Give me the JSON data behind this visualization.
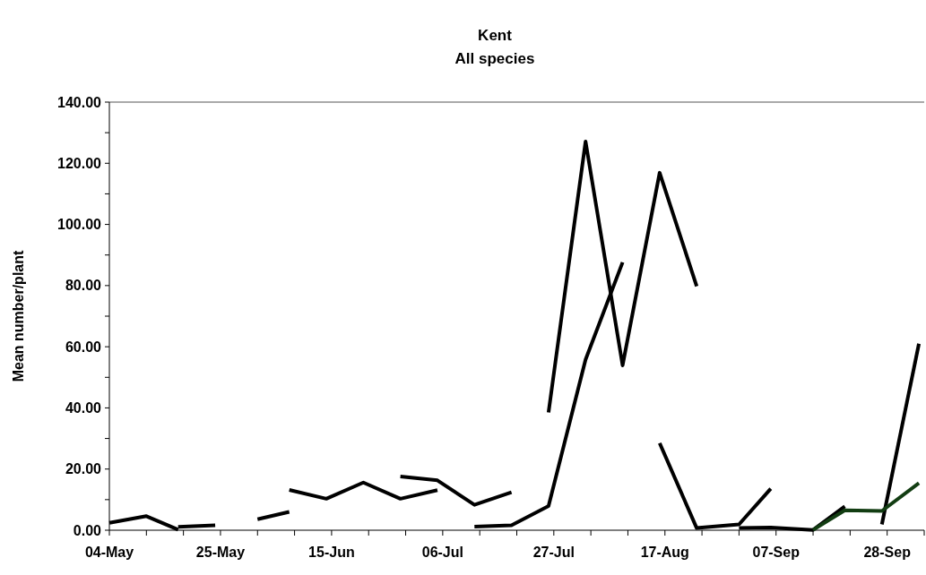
{
  "chart_data": {
    "type": "line",
    "title": "Kent",
    "subtitle": "All species",
    "ylabel": "Mean number/plant",
    "xlim": [
      "--05-04",
      "--10-05"
    ],
    "xticks": [
      {
        "value": "--05-04",
        "label": "04-May"
      },
      {
        "value": "--05-11",
        "label": null
      },
      {
        "value": "--05-18",
        "label": null
      },
      {
        "value": "--05-25",
        "label": "25-May"
      },
      {
        "value": "--06-01",
        "label": null
      },
      {
        "value": "--06-08",
        "label": null
      },
      {
        "value": "--06-15",
        "label": "15-Jun"
      },
      {
        "value": "--06-22",
        "label": null
      },
      {
        "value": "--06-29",
        "label": null
      },
      {
        "value": "--07-06",
        "label": "06-Jul"
      },
      {
        "value": "--07-13",
        "label": null
      },
      {
        "value": "--07-20",
        "label": null
      },
      {
        "value": "--07-27",
        "label": "27-Jul"
      },
      {
        "value": "--08-03",
        "label": null
      },
      {
        "value": "--08-10",
        "label": null
      },
      {
        "value": "--08-17",
        "label": "17-Aug"
      },
      {
        "value": "--08-24",
        "label": null
      },
      {
        "value": "--08-31",
        "label": null
      },
      {
        "value": "--09-07",
        "label": "07-Sep"
      },
      {
        "value": "--09-14",
        "label": null
      },
      {
        "value": "--09-21",
        "label": null
      },
      {
        "value": "--09-28",
        "label": "28-Sep"
      },
      {
        "value": "--10-05",
        "label": null
      }
    ],
    "ylim": [
      0,
      140
    ],
    "yticks": [
      {
        "value": 0,
        "label": "0.00"
      },
      {
        "value": 10,
        "label": null
      },
      {
        "value": 20,
        "label": "20.00"
      },
      {
        "value": 30,
        "label": null
      },
      {
        "value": 40,
        "label": "40.00"
      },
      {
        "value": 50,
        "label": null
      },
      {
        "value": 60,
        "label": "60.00"
      },
      {
        "value": 70,
        "label": null
      },
      {
        "value": 80,
        "label": "80.00"
      },
      {
        "value": 90,
        "label": null
      },
      {
        "value": 100,
        "label": "100.00"
      },
      {
        "value": 110,
        "label": null
      },
      {
        "value": 120,
        "label": "120.00"
      },
      {
        "value": 130,
        "label": null
      },
      {
        "value": 140,
        "label": "140.00"
      }
    ],
    "grid": false,
    "marker": "none",
    "line_style": "solid",
    "series": [
      {
        "color": "#000000",
        "x": [
          "--05-04",
          "--05-11",
          "--05-17"
        ],
        "values": [
          2.4,
          4.6,
          0.2
        ]
      },
      {
        "color": "#000000",
        "x": [
          "--05-17",
          "--05-24"
        ],
        "values": [
          1.1,
          1.6
        ]
      },
      {
        "color": "#000000",
        "x": [
          "--06-01",
          "--06-07"
        ],
        "values": [
          3.6,
          6.0
        ]
      },
      {
        "color": "#000000",
        "x": [
          "--06-07",
          "--06-14",
          "--06-21",
          "--06-28",
          "--07-05"
        ],
        "values": [
          13.2,
          10.3,
          15.6,
          10.3,
          13.1
        ]
      },
      {
        "color": "#000000",
        "x": [
          "--06-28",
          "--07-05",
          "--07-12",
          "--07-19"
        ],
        "values": [
          17.6,
          16.3,
          8.3,
          12.4
        ]
      },
      {
        "color": "#000000",
        "x": [
          "--07-12",
          "--07-19",
          "--07-26",
          "--08-02",
          "--08-09"
        ],
        "values": [
          1.2,
          1.6,
          7.9,
          55.8,
          87.6
        ]
      },
      {
        "color": "#000000",
        "x": [
          "--07-26",
          "--08-02",
          "--08-09",
          "--08-16",
          "--08-23"
        ],
        "values": [
          38.5,
          127.1,
          53.9,
          116.9,
          79.8
        ]
      },
      {
        "color": "#000000",
        "x": [
          "--08-16",
          "--08-23",
          "--08-31",
          "--09-06"
        ],
        "values": [
          28.5,
          0.7,
          1.9,
          13.6
        ]
      },
      {
        "color": "#000000",
        "x": [
          "--08-31",
          "--09-06",
          "--09-14",
          "--09-20"
        ],
        "values": [
          0.7,
          0.9,
          0.1,
          7.8
        ]
      },
      {
        "color": "#000000",
        "x": [
          "--09-27",
          "--10-04"
        ],
        "values": [
          1.9,
          61.0
        ]
      },
      {
        "color": "#123d12",
        "x": [
          "--09-14",
          "--09-20",
          "--09-27",
          "--10-04"
        ],
        "values": [
          0.1,
          6.5,
          6.3,
          15.4
        ]
      }
    ]
  }
}
